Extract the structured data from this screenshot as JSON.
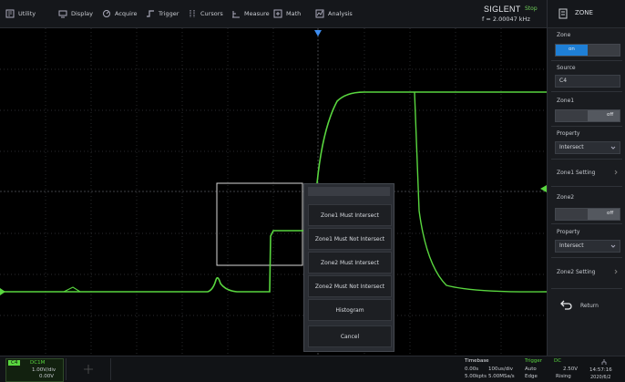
{
  "menubar": {
    "items": [
      {
        "label": "Utility",
        "icon": "utility-icon"
      },
      {
        "label": "Display",
        "icon": "display-icon"
      },
      {
        "label": "Acquire",
        "icon": "acquire-icon"
      },
      {
        "label": "Trigger",
        "icon": "trigger-icon"
      },
      {
        "label": "Cursors",
        "icon": "cursors-icon"
      },
      {
        "label": "Measure",
        "icon": "measure-icon"
      },
      {
        "label": "Math",
        "icon": "math-icon"
      },
      {
        "label": "Analysis",
        "icon": "analysis-icon"
      }
    ]
  },
  "brand": {
    "name": "SIGLENT",
    "state": "Stop",
    "freq": "f = 2.00047 kHz"
  },
  "panel": {
    "title": "ZONE",
    "zone_label": "Zone",
    "zone_on": "on",
    "source_label": "Source",
    "source_value": "C4",
    "zone1_label": "Zone1",
    "zone1_off": "off",
    "prop1_label": "Property",
    "prop1_value": "Intersect",
    "zone1_setting": "Zone1 Setting",
    "zone2_label": "Zone2",
    "zone2_off": "off",
    "prop2_label": "Property",
    "prop2_value": "Intersect",
    "zone2_setting": "Zone2 Setting",
    "return_label": "Return"
  },
  "popup": {
    "items": [
      "Zone1 Must Intersect",
      "Zone1 Must Not Intersect",
      "Zone2 Must Intersect",
      "Zone2 Must Not Intersect",
      "Histogram",
      "Cancel"
    ]
  },
  "bottom": {
    "channel": "C4",
    "coupling": "DC1M",
    "vdiv": "1.00V/div",
    "offset": "0.00V",
    "timebase_label": "Timebase",
    "tb_delay": "0.00s",
    "tb_div": "100us/div",
    "tb_sr": "5.00kpts",
    "tb_pts": "5.00MSa/s",
    "trigger_label": "Trigger",
    "trig_state": "Auto",
    "trig_level": "2.50V",
    "trig_type": "Edge",
    "trig_edge": "Rising",
    "trig_source": "C4",
    "trig_coupling": "DC",
    "time": "14:57:16",
    "date": "2020/6/2"
  },
  "colors": {
    "trace": "#59d63f",
    "accent": "#1e7fd6",
    "trigger": "#59d63f"
  }
}
